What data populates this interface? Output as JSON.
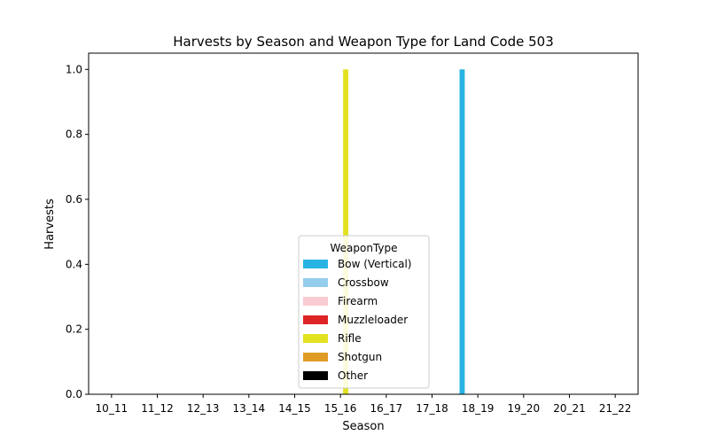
{
  "chart_data": {
    "type": "bar",
    "title": "Harvests by Season and Weapon Type for Land Code 503",
    "xlabel": "Season",
    "ylabel": "Harvests",
    "ylim": [
      0,
      1.05
    ],
    "yticks": [
      "0.0",
      "0.2",
      "0.4",
      "0.6",
      "0.8",
      "1.0"
    ],
    "categories": [
      "10_11",
      "11_12",
      "12_13",
      "13_14",
      "14_15",
      "15_16",
      "16_17",
      "17_18",
      "18_19",
      "19_20",
      "20_21",
      "21_22"
    ],
    "legend_title": "WeaponType",
    "legend_position": "lower-center",
    "grid": false,
    "series": [
      {
        "name": "Bow (Vertical)",
        "color": "#29b3e3",
        "values": [
          0,
          0,
          0,
          0,
          0,
          0,
          0,
          0,
          1,
          0,
          0,
          0
        ]
      },
      {
        "name": "Crossbow",
        "color": "#94cded",
        "values": [
          0,
          0,
          0,
          0,
          0,
          0,
          0,
          0,
          0,
          0,
          0,
          0
        ]
      },
      {
        "name": "Firearm",
        "color": "#f9cbd3",
        "values": [
          0,
          0,
          0,
          0,
          0,
          0,
          0,
          0,
          0,
          0,
          0,
          0
        ]
      },
      {
        "name": "Muzzleloader",
        "color": "#de2424",
        "values": [
          0,
          0,
          0,
          0,
          0,
          0,
          0,
          0,
          0,
          0,
          0,
          0
        ]
      },
      {
        "name": "Rifle",
        "color": "#e2e221",
        "values": [
          0,
          0,
          0,
          0,
          0,
          1,
          0,
          0,
          0,
          0,
          0,
          0
        ]
      },
      {
        "name": "Shotgun",
        "color": "#df9c25",
        "values": [
          0,
          0,
          0,
          0,
          0,
          0,
          0,
          0,
          0,
          0,
          0,
          0
        ]
      },
      {
        "name": "Other",
        "color": "#000000",
        "values": [
          0,
          0,
          0,
          0,
          0,
          0,
          0,
          0,
          0,
          0,
          0,
          0
        ]
      }
    ]
  }
}
